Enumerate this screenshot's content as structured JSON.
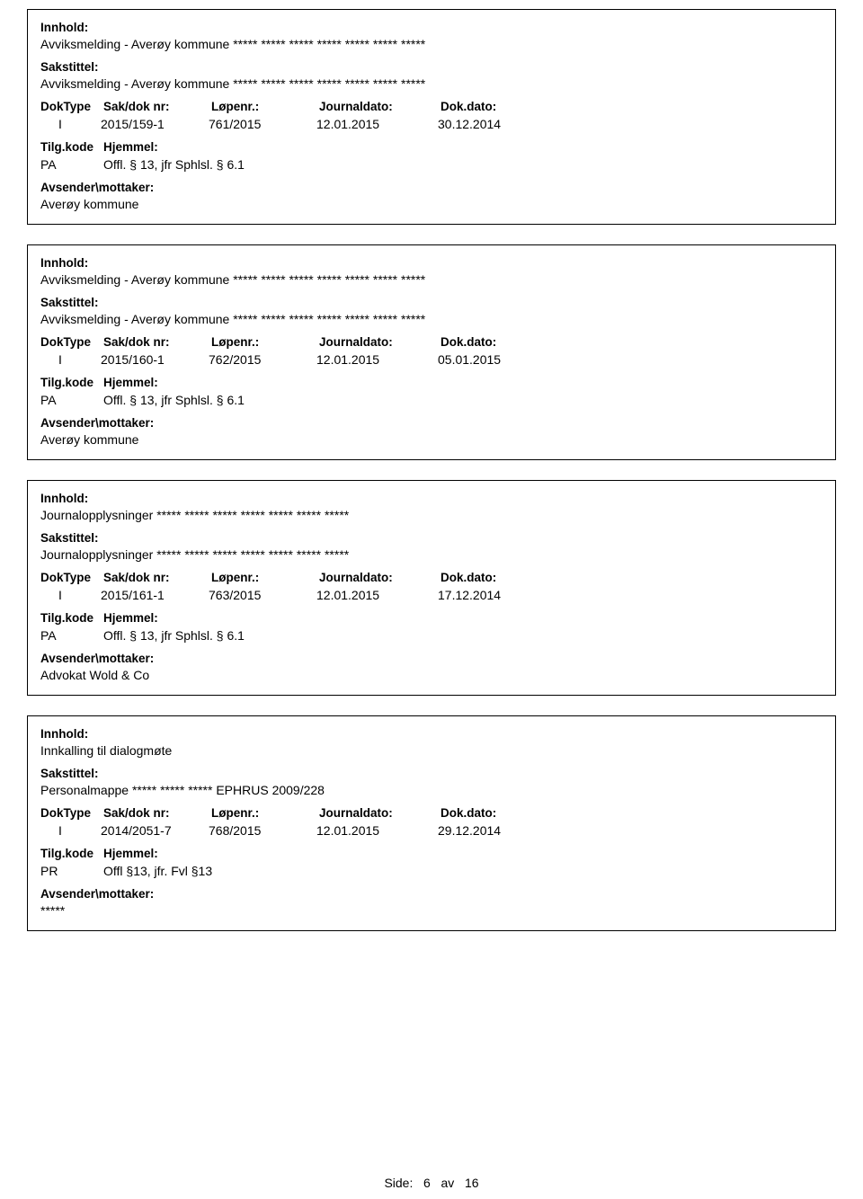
{
  "labels": {
    "innhold": "Innhold:",
    "sakstittel": "Sakstittel:",
    "doktype": "DokType",
    "sakdok": "Sak/dok nr:",
    "lopenr": "Løpenr.:",
    "journaldato": "Journaldato:",
    "dokdato": "Dok.dato:",
    "tilgkode": "Tilg.kode",
    "hjemmel": "Hjemmel:",
    "avsender": "Avsender\\mottaker:"
  },
  "entries": [
    {
      "innhold": "Avviksmelding - Averøy kommune ***** ***** ***** ***** ***** ***** *****",
      "sakstittel": "Avviksmelding - Averøy kommune ***** ***** ***** ***** ***** ***** *****",
      "doktype": "I",
      "sakdok": "2015/159-1",
      "lopenr": "761/2015",
      "journaldato": "12.01.2015",
      "dokdato": "30.12.2014",
      "tilgkode": "PA",
      "hjemmel": "Offl. § 13, jfr Sphlsl. § 6.1",
      "avsender": "Averøy kommune"
    },
    {
      "innhold": "Avviksmelding - Averøy kommune ***** ***** ***** ***** ***** ***** *****",
      "sakstittel": "Avviksmelding - Averøy kommune ***** ***** ***** ***** ***** ***** *****",
      "doktype": "I",
      "sakdok": "2015/160-1",
      "lopenr": "762/2015",
      "journaldato": "12.01.2015",
      "dokdato": "05.01.2015",
      "tilgkode": "PA",
      "hjemmel": "Offl. § 13, jfr Sphlsl. § 6.1",
      "avsender": "Averøy kommune"
    },
    {
      "innhold": "Journalopplysninger ***** ***** ***** ***** ***** ***** *****",
      "sakstittel": "Journalopplysninger ***** ***** ***** ***** ***** ***** *****",
      "doktype": "I",
      "sakdok": "2015/161-1",
      "lopenr": "763/2015",
      "journaldato": "12.01.2015",
      "dokdato": "17.12.2014",
      "tilgkode": "PA",
      "hjemmel": "Offl. § 13, jfr Sphlsl. § 6.1",
      "avsender": "Advokat Wold & Co"
    },
    {
      "innhold": "Innkalling til dialogmøte",
      "sakstittel": "Personalmappe ***** ***** ***** EPHRUS 2009/228",
      "doktype": "I",
      "sakdok": "2014/2051-7",
      "lopenr": "768/2015",
      "journaldato": "12.01.2015",
      "dokdato": "29.12.2014",
      "tilgkode": "PR",
      "hjemmel": "Offl §13, jfr. Fvl §13",
      "avsender": "*****"
    }
  ],
  "footer": {
    "text_prefix": "Side:",
    "page": "6",
    "separator": "av",
    "total": "16"
  }
}
